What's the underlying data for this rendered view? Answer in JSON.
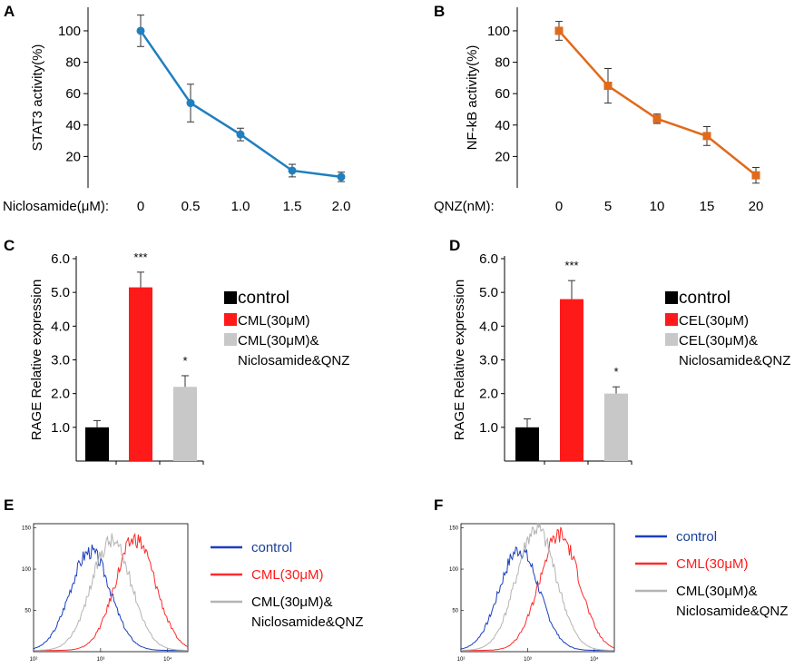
{
  "chart_data": [
    {
      "id": "A",
      "type": "line",
      "panel_label": "A",
      "xlabel": "Niclosamide(μM):",
      "ylabel": "STAT3 activity(%)",
      "color": "#1f7fbf",
      "categories": [
        "0",
        "0.5",
        "1.0",
        "1.5",
        "2.0"
      ],
      "values": [
        100,
        54,
        34,
        11,
        7
      ],
      "errors": [
        10,
        12,
        4,
        4,
        3
      ],
      "yticks": [
        "20",
        "40",
        "60",
        "80",
        "100"
      ],
      "ylim": [
        0,
        115
      ]
    },
    {
      "id": "B",
      "type": "line",
      "panel_label": "B",
      "xlabel": "QNZ(nM):",
      "ylabel": "NF-kB activity(%)",
      "color": "#e06a1a",
      "categories": [
        "0",
        "5",
        "10",
        "15",
        "20"
      ],
      "values": [
        100,
        65,
        44,
        33,
        8
      ],
      "errors": [
        6,
        11,
        3,
        6,
        5
      ],
      "yticks": [
        "20",
        "40",
        "60",
        "80",
        "100"
      ],
      "ylim": [
        0,
        115
      ]
    },
    {
      "id": "C",
      "type": "bar",
      "panel_label": "C",
      "ylabel": "RAGE Relative expression",
      "categories": [
        "control",
        "CML(30μM)",
        "CML(30μM)& Niclosamide&QNZ"
      ],
      "values": [
        1.0,
        5.15,
        2.2
      ],
      "errors": [
        0.2,
        0.45,
        0.33
      ],
      "colors": [
        "#000000",
        "#ff1a1a",
        "#c8c8c8"
      ],
      "significance": [
        "",
        "***",
        "*"
      ],
      "yticks": [
        "1.0",
        "2.0",
        "3.0",
        "4.0",
        "5.0",
        "6.0"
      ],
      "ylim": [
        0,
        6
      ],
      "legend": {
        "items": [
          "control",
          "CML(30μM)",
          "CML(30μM)&",
          "Niclosamide&QNZ"
        ]
      }
    },
    {
      "id": "D",
      "type": "bar",
      "panel_label": "D",
      "ylabel": "RAGE Relative expression",
      "categories": [
        "control",
        "CEL(30μM)",
        "CEL(30μM)& Niclosamide&QNZ"
      ],
      "values": [
        1.0,
        4.8,
        2.0
      ],
      "errors": [
        0.25,
        0.55,
        0.2
      ],
      "colors": [
        "#000000",
        "#ff1a1a",
        "#c8c8c8"
      ],
      "significance": [
        "",
        "***",
        "*"
      ],
      "yticks": [
        "1.0",
        "2.0",
        "3.0",
        "4.0",
        "5.0",
        "6.0"
      ],
      "ylim": [
        0,
        6
      ],
      "legend": {
        "items": [
          "control",
          "CEL(30μM)",
          "CEL(30μM)&",
          "Niclosamide&QNZ"
        ]
      }
    },
    {
      "id": "E",
      "type": "line",
      "subtype": "histogram",
      "panel_label": "E",
      "x_scale": "log",
      "xlim": [
        100,
        20000
      ],
      "ylim": [
        0,
        155
      ],
      "xticks": [
        "10²",
        "10³",
        "10⁴"
      ],
      "yticks": [
        "50",
        "100",
        "150"
      ],
      "series": [
        {
          "name": "control",
          "color": "#1a3fbf",
          "peak_x": 700,
          "peak_y": 120
        },
        {
          "name": "CML(30μM)",
          "color": "#ff2a2a",
          "peak_x": 3300,
          "peak_y": 135
        },
        {
          "name": "CML(30μM)& Niclosamide&QNZ",
          "color": "#b4b4b4",
          "peak_x": 1450,
          "peak_y": 133
        }
      ],
      "legend": {
        "items": [
          "control",
          "CML(30μM)",
          "CML(30μM)&",
          "Niclosamide&QNZ"
        ]
      }
    },
    {
      "id": "F",
      "type": "line",
      "subtype": "histogram",
      "panel_label": "F",
      "x_scale": "log",
      "xlim": [
        100,
        20000
      ],
      "ylim": [
        0,
        155
      ],
      "xticks": [
        "10²",
        "10³",
        "10⁴"
      ],
      "yticks": [
        "50",
        "100",
        "150"
      ],
      "series": [
        {
          "name": "control",
          "color": "#1a3fbf",
          "peak_x": 750,
          "peak_y": 122
        },
        {
          "name": "CML(30μM)",
          "color": "#ff2a2a",
          "peak_x": 3000,
          "peak_y": 140
        },
        {
          "name": "CML(30μM)& Niclosamide&QNZ",
          "color": "#b4b4b4",
          "peak_x": 1350,
          "peak_y": 147
        }
      ],
      "legend": {
        "items": [
          "control",
          "CML(30μM)",
          "CML(30μM)&",
          "Niclosamide&QNZ"
        ]
      }
    }
  ]
}
